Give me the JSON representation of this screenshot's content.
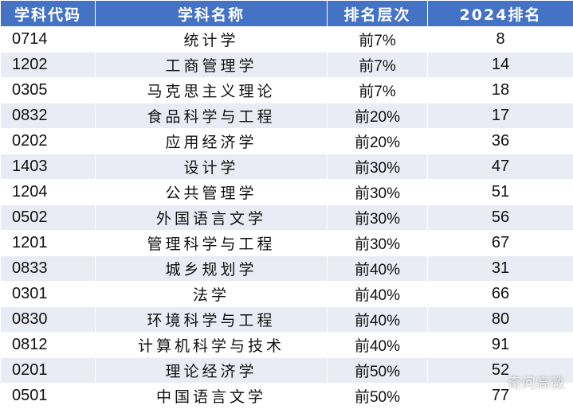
{
  "table": {
    "headers": [
      "学科代码",
      "学科名称",
      "排名层次",
      "2024排名"
    ],
    "rows": [
      {
        "code": "0714",
        "name": "统计学",
        "level": "前7%",
        "rank": "8"
      },
      {
        "code": "1202",
        "name": "工商管理学",
        "level": "前7%",
        "rank": "14"
      },
      {
        "code": "0305",
        "name": "马克思主义理论",
        "level": "前7%",
        "rank": "18"
      },
      {
        "code": "0832",
        "name": "食品科学与工程",
        "level": "前20%",
        "rank": "17"
      },
      {
        "code": "0202",
        "name": "应用经济学",
        "level": "前20%",
        "rank": "36"
      },
      {
        "code": "1403",
        "name": "设计学",
        "level": "前30%",
        "rank": "47"
      },
      {
        "code": "1204",
        "name": "公共管理学",
        "level": "前30%",
        "rank": "51"
      },
      {
        "code": "0502",
        "name": "外国语言文学",
        "level": "前30%",
        "rank": "56"
      },
      {
        "code": "1201",
        "name": "管理科学与工程",
        "level": "前30%",
        "rank": "67"
      },
      {
        "code": "0833",
        "name": "城乡规划学",
        "level": "前40%",
        "rank": "31"
      },
      {
        "code": "0301",
        "name": "法学",
        "level": "前40%",
        "rank": "66"
      },
      {
        "code": "0830",
        "name": "环境科学与工程",
        "level": "前40%",
        "rank": "80"
      },
      {
        "code": "0812",
        "name": "计算机科学与技术",
        "level": "前40%",
        "rank": "91"
      },
      {
        "code": "0201",
        "name": "理论经济学",
        "level": "前50%",
        "rank": "52"
      },
      {
        "code": "0501",
        "name": "中国语言文学",
        "level": "前50%",
        "rank": "77"
      }
    ]
  },
  "watermark": "奇问高教"
}
